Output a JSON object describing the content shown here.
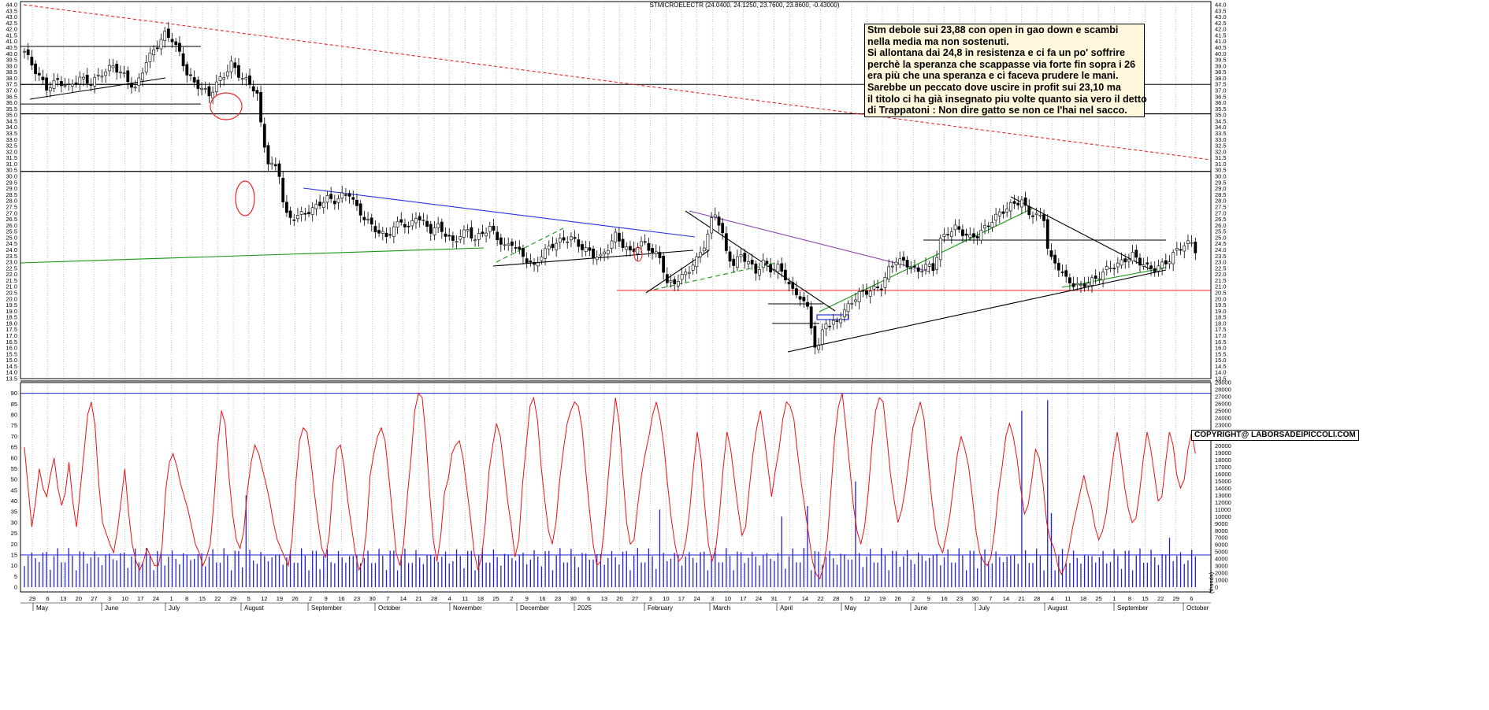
{
  "title": "STMICROELECTR (24.0400, 24.1250, 23.7600, 23.8600, -0.43000)",
  "note_lines": [
    "Stm debole sui 23,88 con open in gao down e scambi",
    "nella media ma non sostenuti.",
    "Si allontana dai 24,8 in resistenza e ci fa un po' soffrire",
    "perchè la speranza che scappasse via forte fin sopra i 26",
    "era più che una speranza e ci faceva prudere le mani.",
    "Sarebbe un peccato dove uscire in profit sui 23,10 ma",
    "il titolo ci ha già insegnato piu volte quanto sia vero il detto",
    "di Trappatoni : Non dire gatto se non ce l'hai nel sacco."
  ],
  "copyright": "COPYRIGHT@ LABORSADEIPICCOLI.COM",
  "colors": {
    "candle": "#000000",
    "oscillator": "#ee1111",
    "volume": "#2222cc",
    "trend_red": "#ee2222",
    "trend_blue": "#2233dd",
    "trend_green": "#119911",
    "trend_purple": "#8844aa",
    "note_bg": "#fff8dc"
  },
  "chart_data": [
    {
      "type": "candlestick",
      "title": "STMICROELECTR (24.0400, 24.1250, 23.7600, 23.8600, -0.43000)",
      "ylim": [
        13.5,
        44.0
      ],
      "y_ticks": [
        "13.5",
        "14.0",
        "14.5",
        "15.0",
        "15.5",
        "16.0",
        "16.5",
        "17.0",
        "17.5",
        "18.0",
        "18.5",
        "19.0",
        "19.5",
        "20.0",
        "20.5",
        "21.0",
        "21.5",
        "22.0",
        "22.5",
        "23.0",
        "23.5",
        "24.0",
        "24.5",
        "25.0",
        "25.5",
        "26.0",
        "26.5",
        "27.0",
        "27.5",
        "28.0",
        "28.5",
        "29.0",
        "29.5",
        "30.0",
        "30.5",
        "31.0",
        "31.5",
        "32.0",
        "32.5",
        "33.0",
        "33.5",
        "34.0",
        "34.5",
        "35.0",
        "35.5",
        "36.0",
        "36.5",
        "37.0",
        "37.5",
        "38.0",
        "38.5",
        "39.0",
        "39.5",
        "40.0",
        "40.5",
        "41.0",
        "41.5",
        "42.0",
        "42.5",
        "43.0",
        "43.5",
        "44.0"
      ],
      "x_day_labels": [
        "29",
        "6",
        "13",
        "20",
        "27",
        "3",
        "10",
        "17",
        "24",
        "1",
        "8",
        "15",
        "22",
        "29",
        "5",
        "12",
        "19",
        "26",
        "2",
        "9",
        "16",
        "23",
        "30",
        "7",
        "14",
        "21",
        "28",
        "4",
        "11",
        "18",
        "25",
        "2",
        "9",
        "16",
        "23",
        "30",
        "6",
        "13",
        "20",
        "27",
        "3",
        "10",
        "17",
        "24",
        "3",
        "10",
        "17",
        "24",
        "31",
        "7",
        "14",
        "22",
        "28",
        "5",
        "12",
        "19",
        "26",
        "2",
        "9",
        "16",
        "23",
        "30",
        "7",
        "14",
        "21",
        "28",
        "4",
        "11",
        "18",
        "25",
        "1",
        "8",
        "15",
        "22",
        "29",
        "6"
      ],
      "x_month_labels": [
        "May",
        "June",
        "July",
        "August",
        "September",
        "October",
        "November",
        "December",
        "2025",
        "February",
        "March",
        "April",
        "May",
        "June",
        "July",
        "August",
        "September",
        "October"
      ],
      "horizontal_levels": [
        40.6,
        37.5,
        35.9,
        35.1,
        30.4,
        24.8,
        20.7,
        19.6,
        18.0
      ],
      "close_points": [
        [
          0,
          40.2
        ],
        [
          3,
          38.6
        ],
        [
          6,
          37.2
        ],
        [
          9,
          37.8
        ],
        [
          12,
          37.3
        ],
        [
          15,
          38.0
        ],
        [
          18,
          37.6
        ],
        [
          21,
          38.4
        ],
        [
          24,
          39.0
        ],
        [
          27,
          38.2
        ],
        [
          30,
          37.1
        ],
        [
          33,
          39.4
        ],
        [
          36,
          40.7
        ],
        [
          38,
          41.6
        ],
        [
          40,
          41.2
        ],
        [
          42,
          40.0
        ],
        [
          44,
          38.4
        ],
        [
          46,
          37.6
        ],
        [
          48,
          37.2
        ],
        [
          50,
          36.6
        ],
        [
          52,
          37.6
        ],
        [
          54,
          38.2
        ],
        [
          56,
          39.2
        ],
        [
          58,
          38.3
        ],
        [
          60,
          37.8
        ],
        [
          62,
          37.2
        ],
        [
          63,
          36.7
        ],
        [
          64,
          34.2
        ],
        [
          65,
          32.5
        ],
        [
          66,
          31.2
        ],
        [
          67,
          30.9
        ],
        [
          68,
          30.7
        ],
        [
          69,
          30.2
        ],
        [
          70,
          28.0
        ],
        [
          71,
          26.8
        ],
        [
          72,
          26.6
        ],
        [
          74,
          26.8
        ],
        [
          76,
          27.0
        ],
        [
          78,
          27.3
        ],
        [
          80,
          27.8
        ],
        [
          82,
          28.2
        ],
        [
          84,
          28.0
        ],
        [
          86,
          28.4
        ],
        [
          88,
          28.6
        ],
        [
          90,
          27.4
        ],
        [
          92,
          26.6
        ],
        [
          94,
          26.0
        ],
        [
          96,
          25.4
        ],
        [
          98,
          25.1
        ],
        [
          100,
          25.8
        ],
        [
          102,
          26.4
        ],
        [
          104,
          25.7
        ],
        [
          106,
          26.8
        ],
        [
          108,
          26.2
        ],
        [
          110,
          25.6
        ],
        [
          112,
          25.9
        ],
        [
          114,
          25.3
        ],
        [
          116,
          24.6
        ],
        [
          118,
          25.2
        ],
        [
          120,
          25.6
        ],
        [
          122,
          24.8
        ],
        [
          124,
          25.4
        ],
        [
          126,
          25.8
        ],
        [
          128,
          25.0
        ],
        [
          130,
          24.2
        ],
        [
          132,
          24.6
        ],
        [
          134,
          23.8
        ],
        [
          136,
          23.2
        ],
        [
          138,
          22.6
        ],
        [
          140,
          23.6
        ],
        [
          142,
          24.2
        ],
        [
          144,
          24.6
        ],
        [
          146,
          24.8
        ],
        [
          148,
          25.0
        ],
        [
          150,
          24.4
        ],
        [
          152,
          24.0
        ],
        [
          154,
          23.6
        ],
        [
          156,
          23.4
        ],
        [
          158,
          24.2
        ],
        [
          160,
          25.2
        ],
        [
          162,
          24.4
        ],
        [
          164,
          23.8
        ],
        [
          166,
          24.3
        ],
        [
          168,
          24.6
        ],
        [
          170,
          23.8
        ],
        [
          172,
          23.4
        ],
        [
          173,
          22.4
        ],
        [
          174,
          21.2
        ],
        [
          176,
          21.4
        ],
        [
          178,
          21.8
        ],
        [
          180,
          22.4
        ],
        [
          182,
          23.2
        ],
        [
          184,
          24.4
        ],
        [
          185,
          25.2
        ],
        [
          186,
          26.4
        ],
        [
          187,
          27.0
        ],
        [
          188,
          26.2
        ],
        [
          189,
          25.2
        ],
        [
          190,
          23.8
        ],
        [
          192,
          22.8
        ],
        [
          194,
          23.6
        ],
        [
          196,
          23.0
        ],
        [
          198,
          22.2
        ],
        [
          200,
          23.0
        ],
        [
          202,
          22.4
        ],
        [
          204,
          22.6
        ],
        [
          206,
          21.8
        ],
        [
          208,
          20.6
        ],
        [
          210,
          20.2
        ],
        [
          212,
          19.2
        ],
        [
          213,
          17.8
        ],
        [
          214,
          16.2
        ],
        [
          215,
          16.0
        ],
        [
          216,
          17.4
        ],
        [
          217,
          18.2
        ],
        [
          218,
          17.8
        ],
        [
          220,
          18.2
        ],
        [
          222,
          19.0
        ],
        [
          224,
          19.8
        ],
        [
          226,
          20.4
        ],
        [
          228,
          20.6
        ],
        [
          230,
          20.8
        ],
        [
          232,
          21.0
        ],
        [
          234,
          22.4
        ],
        [
          236,
          23.2
        ],
        [
          238,
          23.0
        ],
        [
          240,
          22.6
        ],
        [
          242,
          22.2
        ],
        [
          244,
          22.8
        ],
        [
          246,
          22.4
        ],
        [
          248,
          24.8
        ],
        [
          250,
          25.4
        ],
        [
          252,
          25.8
        ],
        [
          254,
          25.4
        ],
        [
          256,
          25.0
        ],
        [
          258,
          25.2
        ],
        [
          260,
          25.8
        ],
        [
          262,
          26.4
        ],
        [
          264,
          27.0
        ],
        [
          266,
          27.4
        ],
        [
          268,
          27.8
        ],
        [
          270,
          28.0
        ],
        [
          271,
          27.4
        ],
        [
          272,
          27.0
        ],
        [
          274,
          26.8
        ],
        [
          276,
          26.6
        ],
        [
          277,
          24.2
        ],
        [
          278,
          23.2
        ],
        [
          280,
          22.6
        ],
        [
          282,
          21.6
        ],
        [
          284,
          21.2
        ],
        [
          286,
          21.0
        ],
        [
          288,
          21.4
        ],
        [
          290,
          21.6
        ],
        [
          292,
          22.2
        ],
        [
          294,
          22.6
        ],
        [
          296,
          22.8
        ],
        [
          298,
          23.2
        ],
        [
          300,
          23.6
        ],
        [
          302,
          23.0
        ],
        [
          304,
          22.6
        ],
        [
          306,
          22.4
        ],
        [
          308,
          22.8
        ],
        [
          310,
          23.2
        ],
        [
          312,
          24.0
        ],
        [
          314,
          24.4
        ],
        [
          316,
          24.6
        ],
        [
          317,
          24.0
        ]
      ]
    },
    {
      "type": "bar+line",
      "series": [
        {
          "type": "line",
          "y_ticks_left": [
            "0",
            "5",
            "10",
            "15",
            "20",
            "25",
            "30",
            "35",
            "40",
            "45",
            "50",
            "55",
            "60",
            "65",
            "70",
            "75",
            "80",
            "85",
            "90"
          ],
          "reference_levels": [
            90,
            15
          ],
          "values": [
            65,
            46,
            28,
            40,
            55,
            46,
            42,
            52,
            60,
            46,
            38,
            44,
            58,
            40,
            28,
            45,
            62,
            80,
            86,
            75,
            48,
            30,
            25,
            20,
            16,
            26,
            40,
            55,
            35,
            20,
            12,
            8,
            12,
            18,
            14,
            10,
            10,
            18,
            45,
            58,
            62,
            56,
            48,
            42,
            36,
            28,
            20,
            16,
            10,
            14,
            20,
            40,
            66,
            82,
            76,
            52,
            34,
            22,
            18,
            26,
            45,
            58,
            66,
            62,
            55,
            48,
            40,
            30,
            22,
            18,
            14,
            10,
            22,
            48,
            68,
            74,
            72,
            60,
            44,
            30,
            18,
            14,
            24,
            48,
            64,
            66,
            56,
            40,
            28,
            16,
            8,
            12,
            26,
            52,
            62,
            70,
            74,
            68,
            52,
            34,
            16,
            10,
            20,
            42,
            60,
            82,
            90,
            88,
            70,
            44,
            22,
            12,
            24,
            44,
            50,
            62,
            66,
            68,
            60,
            46,
            32,
            16,
            8,
            14,
            30,
            54,
            66,
            76,
            70,
            56,
            40,
            28,
            14,
            22,
            48,
            66,
            84,
            88,
            78,
            56,
            40,
            26,
            20,
            30,
            50,
            64,
            76,
            82,
            86,
            84,
            74,
            54,
            36,
            20,
            10,
            12,
            28,
            50,
            70,
            88,
            76,
            52,
            30,
            20,
            22,
            38,
            52,
            62,
            70,
            80,
            86,
            78,
            66,
            48,
            32,
            20,
            12,
            14,
            22,
            36,
            56,
            72,
            60,
            38,
            20,
            12,
            18,
            34,
            56,
            72,
            64,
            50,
            36,
            24,
            28,
            46,
            62,
            74,
            82,
            70,
            56,
            42,
            54,
            64,
            78,
            86,
            84,
            78,
            62,
            48,
            36,
            24,
            12,
            6,
            4,
            10,
            22,
            46,
            70,
            84,
            90,
            74,
            56,
            38,
            26,
            20,
            28,
            44,
            66,
            82,
            88,
            86,
            70,
            52,
            40,
            30,
            36,
            46,
            60,
            74,
            80,
            86,
            78,
            60,
            42,
            28,
            20,
            16,
            24,
            34,
            48,
            62,
            70,
            64,
            56,
            42,
            26,
            16,
            12,
            10,
            14,
            26,
            44,
            56,
            70,
            76,
            70,
            60,
            46,
            34,
            38,
            50,
            64,
            60,
            48,
            30,
            22,
            18,
            10,
            6,
            10,
            18,
            28,
            36,
            44,
            52,
            44,
            38,
            28,
            22,
            26,
            34,
            48,
            62,
            72,
            60,
            46,
            36,
            30,
            32,
            44,
            60,
            72,
            64,
            52,
            40,
            42,
            58,
            72,
            66,
            52,
            46,
            50,
            64,
            72,
            62
          ]
        },
        {
          "type": "bar",
          "name": "volume",
          "y_ticks_right": [
            "0",
            "1000",
            "2000",
            "3000",
            "4000",
            "5000",
            "6000",
            "7000",
            "8000",
            "9000",
            "10000",
            "11000",
            "12000",
            "13000",
            "14000",
            "15000",
            "16000",
            "17000",
            "18000",
            "19000",
            "20000",
            "21000",
            "22000",
            "23000",
            "24000",
            "25000",
            "26000",
            "27000",
            "28000",
            "29000"
          ],
          "unit_label": "(thsnds)",
          "note": "~320 daily volume bars, mostly 1000–6000, spikes near 13000–27000"
        }
      ]
    }
  ]
}
